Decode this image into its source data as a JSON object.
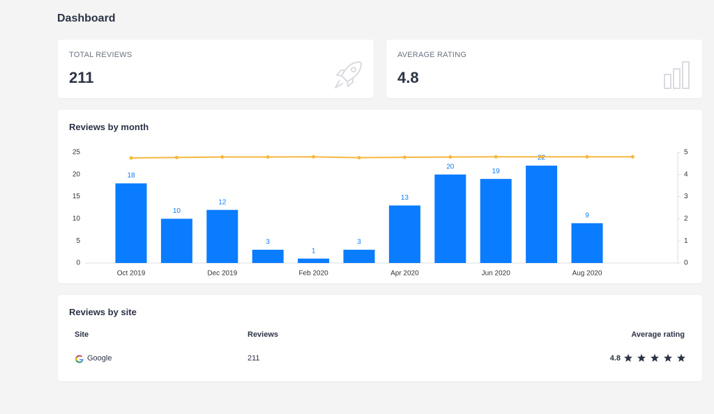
{
  "header": {
    "title": "Dashboard"
  },
  "cards": [
    {
      "label": "TOTAL REVIEWS",
      "value": 211
    },
    {
      "label": "AVERAGE RATING",
      "value": 4.8
    }
  ],
  "chart_data": {
    "type": "bar",
    "title": "Reviews by month",
    "categories": [
      "Oct 2019",
      null,
      "Dec 2019",
      null,
      "Feb 2020",
      null,
      "Apr 2020",
      null,
      "Jun 2020",
      null,
      "Aug 2020",
      null
    ],
    "series": [
      {
        "type": "bar",
        "color": "#0a7cff",
        "values": [
          18,
          10,
          12,
          3,
          1,
          3,
          13,
          20,
          19,
          22,
          9,
          null
        ]
      },
      {
        "type": "line",
        "axis": "y2",
        "color": "#f5b83d",
        "values": [
          4.75,
          4.77,
          4.79,
          4.79,
          4.8,
          4.76,
          4.78,
          4.79,
          4.8,
          4.8,
          4.8,
          4.8
        ]
      }
    ],
    "ylim": [
      0,
      25
    ],
    "yticks": [
      0,
      5,
      10,
      15,
      20,
      25
    ],
    "y2lim": [
      0,
      5
    ],
    "y2ticks": [
      0,
      1,
      2,
      3,
      4,
      5
    ],
    "grid": false
  },
  "table": {
    "title": "Reviews by site",
    "columns": [
      "Site",
      "Reviews",
      "Average rating"
    ],
    "rows": [
      [
        "Google",
        211,
        4.8
      ]
    ]
  }
}
